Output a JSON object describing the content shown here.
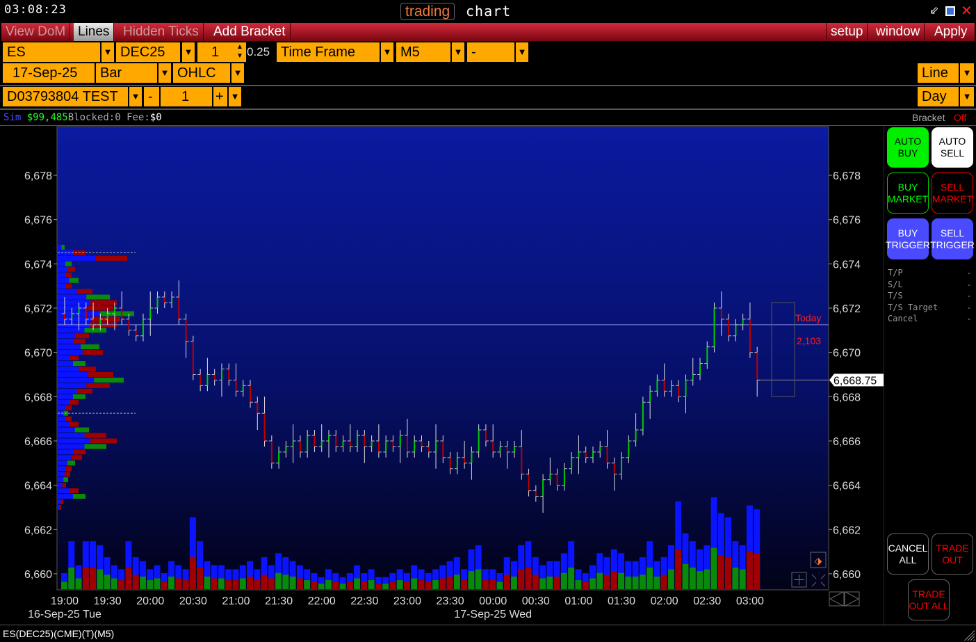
{
  "titlebar": {
    "clock": "03:08:23",
    "title_brand": "trading",
    "title_app": "chart",
    "icons": [
      "minimize-icon",
      "restore-icon",
      "close-icon"
    ]
  },
  "menu": {
    "items": [
      "View DoM",
      "Lines",
      "Hidden Ticks",
      "Add Bracket"
    ],
    "active": "Lines",
    "right_items": [
      "setup",
      "window",
      "Apply"
    ]
  },
  "toolbar": {
    "symbol": "ES",
    "contract": "DEC25",
    "multiplier": "1",
    "tick_size": "0.25",
    "period_mode": "Time Frame",
    "timeframe": "M5",
    "extra": "-",
    "date": "17-Sep-25",
    "chart_type": "Bar",
    "bar_style": "OHLC",
    "line_mode": "Line",
    "account": "D03793804 TEST",
    "qty_minus": "-",
    "quantity": "1",
    "qty_plus": "+",
    "session": "Day"
  },
  "account_status": {
    "mode": "Sim",
    "balance": "$99,485",
    "blocked_label": "Blocked:",
    "blocked": "0",
    "fee_label": "Fee:",
    "fee": "$0",
    "bracket_label": "Bracket",
    "bracket_state": "Off"
  },
  "buttons": {
    "auto_buy": "AUTO BUY",
    "auto_sell": "AUTO SELL",
    "buy_market": "BUY MARKET",
    "sell_market": "SELL MARKET",
    "buy_trigger": "BUY TRIGGER",
    "sell_trigger": "SELL TRIGGER",
    "cancel_all": "CANCEL ALL",
    "trade_out": "TRADE OUT",
    "trade_out_all": "TRADE OUT ALL"
  },
  "order_params": [
    {
      "label": "T/P",
      "value": "-"
    },
    {
      "label": "S/L",
      "value": "-"
    },
    {
      "label": "T/S",
      "value": "-"
    },
    {
      "label": "T/S Target",
      "value": "-"
    },
    {
      "label": "Cancel",
      "value": "-"
    }
  ],
  "footer": {
    "instrument": "ES(DEC25)(CME)(T)(M5)"
  },
  "colors": {
    "accent": "#ffa800",
    "menu_red": "#c01a2a",
    "buy_green": "#00ff00",
    "sell_red": "#ff0000",
    "trigger_blue": "#4a4aff",
    "up_bar": "#00a000",
    "down_bar": "#a00000",
    "volume_blue": "#0a14ff"
  },
  "chart_data": {
    "type": "bar",
    "bar_style": "OHLC",
    "timeframe_minutes": 5,
    "yticks": [
      6660,
      6662,
      6664,
      6666,
      6668,
      6670,
      6672,
      6674,
      6676,
      6678
    ],
    "ytick_labels": [
      "6,660",
      "6,662",
      "6,664",
      "6,666",
      "6,668",
      "6,670",
      "6,672",
      "6,674",
      "6,676",
      "6,678"
    ],
    "ylim": [
      6659.4,
      6679.9
    ],
    "xtick_labels": [
      "19:00",
      "19:30",
      "20:00",
      "20:30",
      "21:00",
      "21:30",
      "22:00",
      "22:30",
      "23:00",
      "23:30",
      "00:00",
      "00:30",
      "01:00",
      "01:30",
      "02:00",
      "02:30",
      "03:00"
    ],
    "date_labels": [
      {
        "label": "16-Sep-25 Tue",
        "at": "19:00"
      },
      {
        "label": "17-Sep-25 Wed",
        "at": "00:00"
      }
    ],
    "start_time": "19:00",
    "close": [
      6671.5,
      6671.75,
      6672,
      6671.5,
      6671.25,
      6671.5,
      6671.75,
      6672,
      6671.5,
      6671,
      6670.75,
      6671.5,
      6672,
      6672.5,
      6672.25,
      6672.5,
      6671.5,
      6670.5,
      6669,
      6668.5,
      6669,
      6668.75,
      6669.25,
      6668.75,
      6668.25,
      6668.5,
      6667.75,
      6667.25,
      6666,
      6665,
      6665.5,
      6665.75,
      6666,
      6665.5,
      6666.25,
      6665.75,
      6666,
      6666.25,
      6665.75,
      6666,
      6665.75,
      6666.25,
      6665.75,
      6666,
      6665.5,
      6666,
      6665.75,
      6666.25,
      6665.5,
      6666,
      6665.75,
      6665.5,
      6666,
      6665.25,
      6664.75,
      6665.25,
      6665,
      6665.5,
      6666.5,
      6666,
      6665.5,
      6665.75,
      6665.5,
      6665.75,
      6664.5,
      6663.75,
      6663.5,
      6664.25,
      6664.5,
      6664,
      6664.75,
      6665.25,
      6665.5,
      6665.25,
      6665.5,
      6665.75,
      6665,
      6664.5,
      6665.25,
      6666,
      6666.5,
      6667.75,
      6668.25,
      6668.75,
      6668.25,
      6668.5,
      6668,
      6668.75,
      6669,
      6669.5,
      6670.25,
      6672,
      6671.5,
      6670.75,
      6671.25,
      6671.5,
      6670,
      6668.75
    ],
    "volume": [
      20,
      60,
      30,
      60,
      60,
      55,
      40,
      30,
      25,
      60,
      40,
      35,
      25,
      30,
      20,
      35,
      30,
      25,
      90,
      60,
      35,
      30,
      30,
      25,
      25,
      30,
      35,
      25,
      40,
      30,
      45,
      40,
      35,
      30,
      25,
      20,
      15,
      25,
      20,
      15,
      20,
      30,
      20,
      25,
      15,
      15,
      20,
      25,
      20,
      30,
      25,
      20,
      25,
      30,
      35,
      40,
      25,
      50,
      55,
      25,
      25,
      20,
      40,
      35,
      55,
      60,
      40,
      30,
      35,
      35,
      45,
      60,
      25,
      20,
      30,
      45,
      40,
      50,
      45,
      35,
      35,
      40,
      60,
      35,
      40,
      55,
      110,
      70,
      60,
      50,
      55,
      115,
      95,
      90,
      60,
      55,
      105,
      100
    ],
    "volume_profile": {
      "top_price": 6674.75,
      "step": 0.25,
      "values": [
        10,
        40,
        100,
        20,
        25,
        20,
        30,
        20,
        50,
        75,
        85,
        80,
        110,
        90,
        85,
        70,
        45,
        40,
        60,
        65,
        30,
        40,
        55,
        80,
        95,
        75,
        50,
        40,
        30,
        20,
        15,
        20,
        30,
        45,
        70,
        85,
        70,
        40,
        35,
        25,
        20,
        18,
        15,
        12,
        30,
        40,
        8,
        5
      ]
    },
    "profile_value_area": [
      6667.25,
      6674.5
    ],
    "reference_line": 6671.25,
    "last_price": 6668.75,
    "last_price_label": "6,668.75",
    "today_label": "Today",
    "today_volume": "2,103"
  }
}
